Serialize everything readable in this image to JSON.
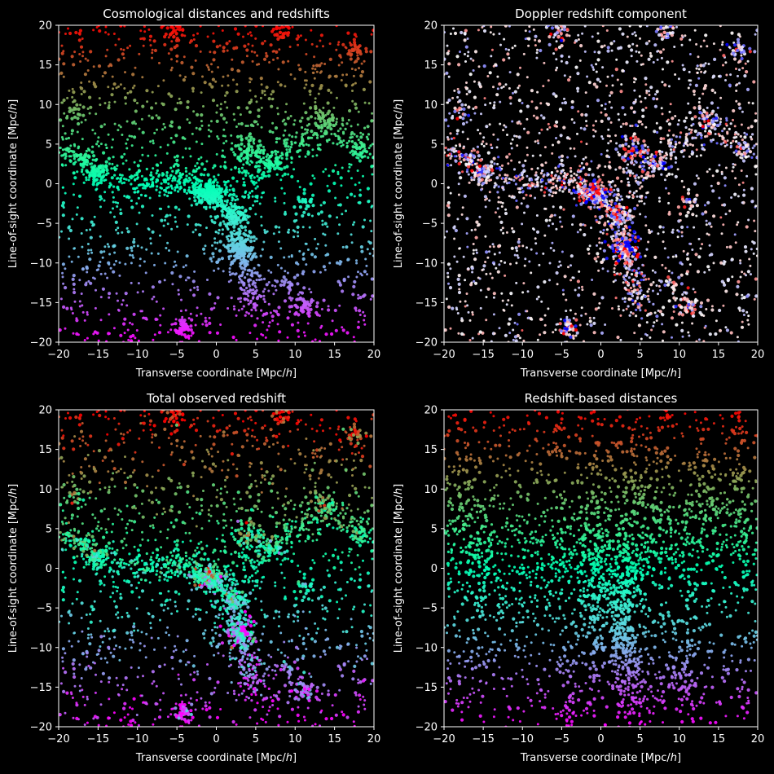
{
  "figure": {
    "background": "#000000",
    "foreground": "#ffffff"
  },
  "chart_data": [
    {
      "type": "scatter",
      "title": "Cosmological distances and redshifts",
      "xlabel": "Transverse coordinate [Mpc/h]",
      "ylabel": "Line-of-sight coordinate [Mpc/h]",
      "xlim": [
        -20,
        20
      ],
      "ylim": [
        -20,
        20
      ],
      "xticks": [
        -20,
        -15,
        -10,
        -5,
        0,
        5,
        10,
        15,
        20
      ],
      "yticks": [
        -20,
        -15,
        -10,
        -5,
        0,
        5,
        10,
        15,
        20
      ],
      "grid": false,
      "legend": "none",
      "colormap": "rainbow",
      "color_by": "line-of-sight coordinate (real space)",
      "points": "galaxy positions in real space; filament running from (-5,1) through (0,-1) to (3,-8), clumps near (11,-16), (-4,-18), (4,4), (7,3), (-15,1)"
    },
    {
      "type": "scatter",
      "title": "Doppler redshift component",
      "xlabel": "Transverse coordinate [Mpc/h]",
      "ylabel": "Line-of-sight coordinate [Mpc/h]",
      "xlim": [
        -20,
        20
      ],
      "ylim": [
        -20,
        20
      ],
      "xticks": [
        -20,
        -15,
        -10,
        -5,
        0,
        5,
        10,
        15,
        20
      ],
      "yticks": [
        -20,
        -15,
        -10,
        -5,
        0,
        5,
        10,
        15,
        20
      ],
      "grid": false,
      "legend": "none",
      "colormap": "bwr",
      "color_by": "peculiar velocity along line of sight",
      "points": "same real-space positions; blue on the near side of the structures, red on the far side"
    },
    {
      "type": "scatter",
      "title": "Total observed redshift",
      "xlabel": "Transverse coordinate [Mpc/h]",
      "ylabel": "Line-of-sight coordinate [Mpc/h]",
      "xlim": [
        -20,
        20
      ],
      "ylim": [
        -20,
        20
      ],
      "xticks": [
        -20,
        -15,
        -10,
        -5,
        0,
        5,
        10,
        15,
        20
      ],
      "yticks": [
        -20,
        -15,
        -10,
        -5,
        0,
        5,
        10,
        15,
        20
      ],
      "grid": false,
      "legend": "none",
      "colormap": "rainbow",
      "color_by": "total observed redshift",
      "points": "same real-space positions, colored by cosmological plus Doppler redshift"
    },
    {
      "type": "scatter",
      "title": "Redshift-based distances",
      "xlabel": "Transverse coordinate [Mpc/h]",
      "ylabel": "Line-of-sight coordinate [Mpc/h]",
      "xlim": [
        -20,
        20
      ],
      "ylim": [
        -20,
        20
      ],
      "xticks": [
        -20,
        -15,
        -10,
        -5,
        0,
        5,
        10,
        15,
        20
      ],
      "yticks": [
        -20,
        -15,
        -10,
        -5,
        0,
        5,
        10,
        15,
        20
      ],
      "grid": false,
      "legend": "none",
      "colormap": "rainbow",
      "color_by": "line-of-sight coordinate (redshift space)",
      "points": "positions moved along the line of sight; clusters stretched into vertical fingers near x = 3 and x = -5"
    }
  ]
}
